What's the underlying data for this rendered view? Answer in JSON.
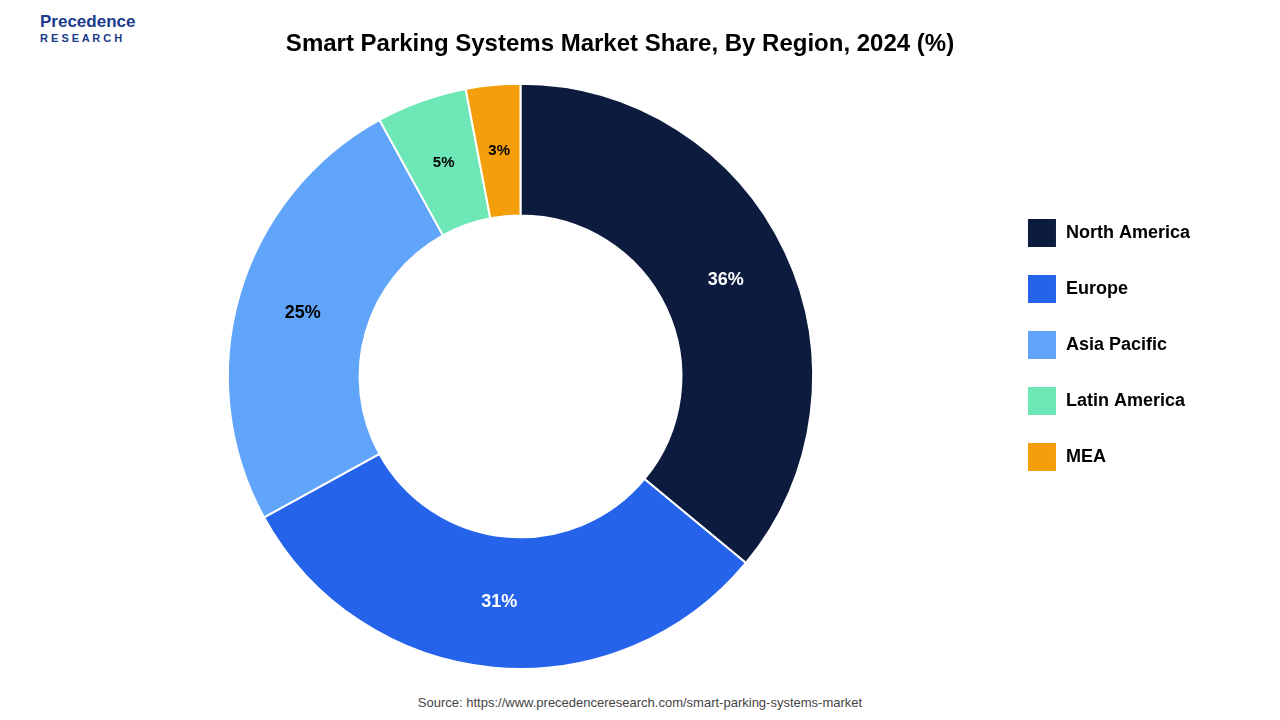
{
  "chart_data": {
    "type": "doughnut",
    "title": "Smart Parking Systems Market Share, By Region, 2024 (%)",
    "categories": [
      "North America",
      "Europe",
      "Asia Pacific",
      "Latin America",
      "MEA"
    ],
    "values": [
      36,
      31,
      25,
      5,
      3
    ],
    "value_labels": [
      "36%",
      "31%",
      "25%",
      "5%",
      "3%"
    ],
    "colors": [
      "#0d1b3e",
      "#2563eb",
      "#60a5fa",
      "#6ee7b7",
      "#f59e0b"
    ],
    "data_labels": true,
    "legend": "right",
    "annotations": [
      "Precedence",
      "R E S E A R C H",
      "Source: https://www.precedenceresearch.com/smart-parking-systems-market"
    ]
  }
}
